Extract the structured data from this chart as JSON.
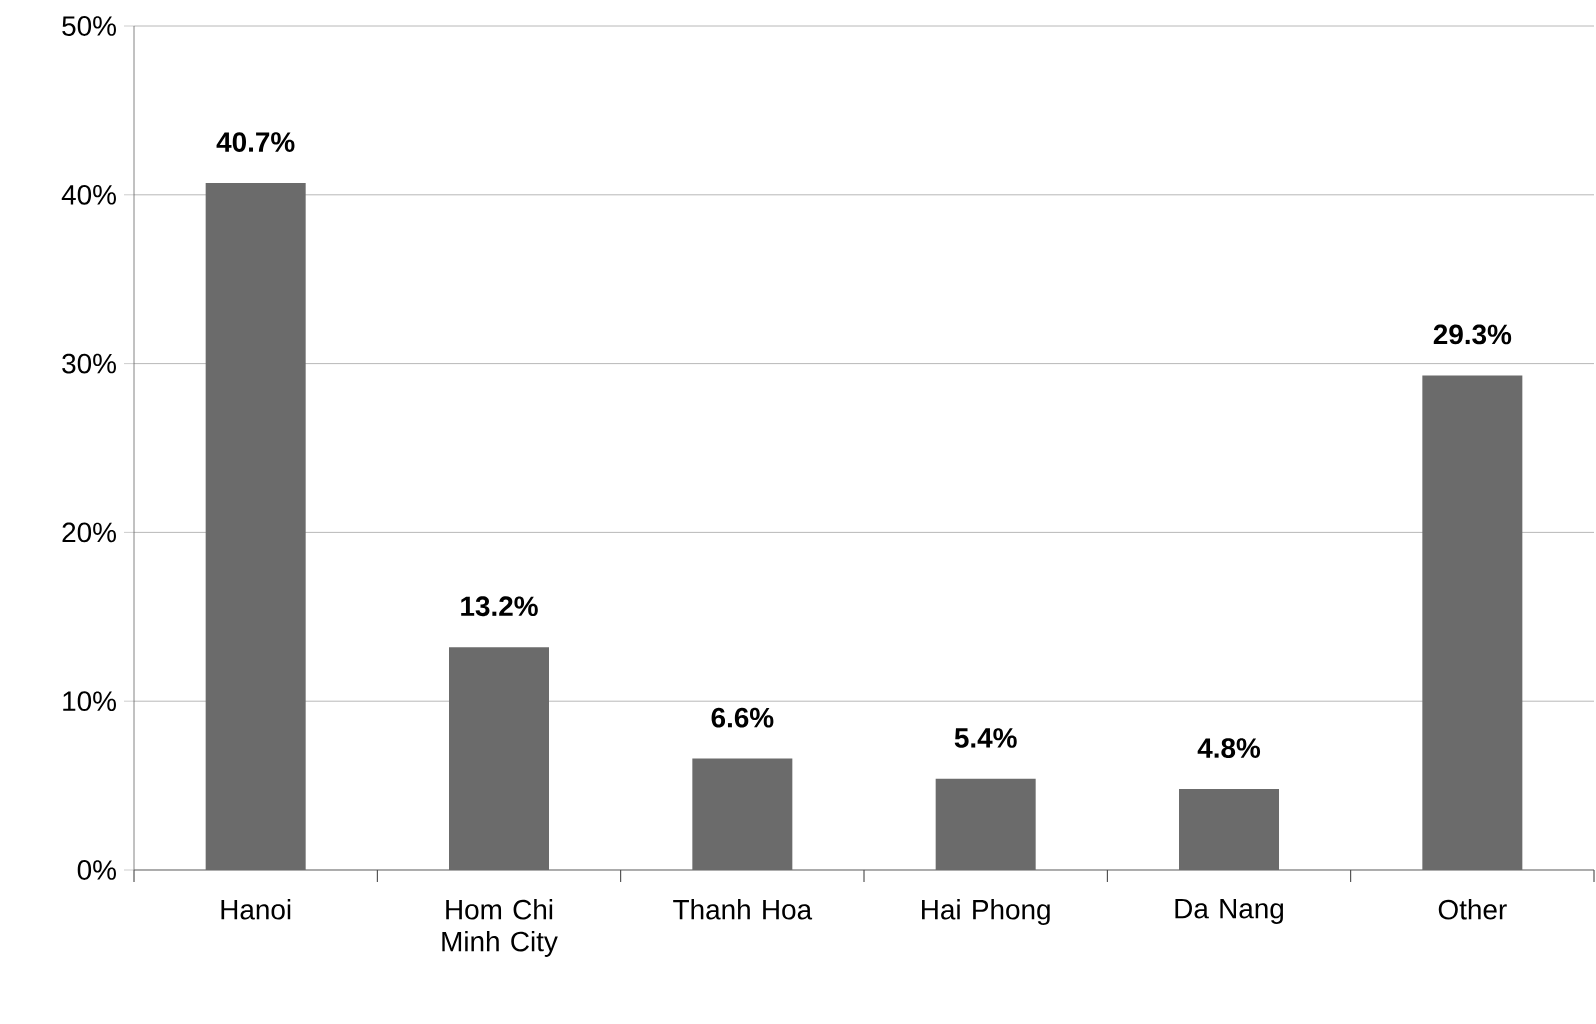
{
  "chart_data": {
    "type": "bar",
    "categories": [
      "Hanoi",
      "Hom Chi Minh City",
      "Thanh Hoa",
      "Hai Phong",
      "Da Nang",
      "Other"
    ],
    "values": [
      40.7,
      13.2,
      6.6,
      5.4,
      4.8,
      29.3
    ],
    "value_labels": [
      "40.7%",
      "13.2%",
      "6.6%",
      "5.4%",
      "4.8%",
      "29.3%"
    ],
    "color": "#6b6b6b",
    "ylim": [
      0,
      50
    ],
    "yticks": [
      {
        "value": 0,
        "label": "0%"
      },
      {
        "value": 10,
        "label": "10%"
      },
      {
        "value": 20,
        "label": "20%"
      },
      {
        "value": 30,
        "label": "30%"
      },
      {
        "value": 40,
        "label": "40%"
      },
      {
        "value": 50,
        "label": "50%"
      }
    ],
    "grid": "y"
  }
}
